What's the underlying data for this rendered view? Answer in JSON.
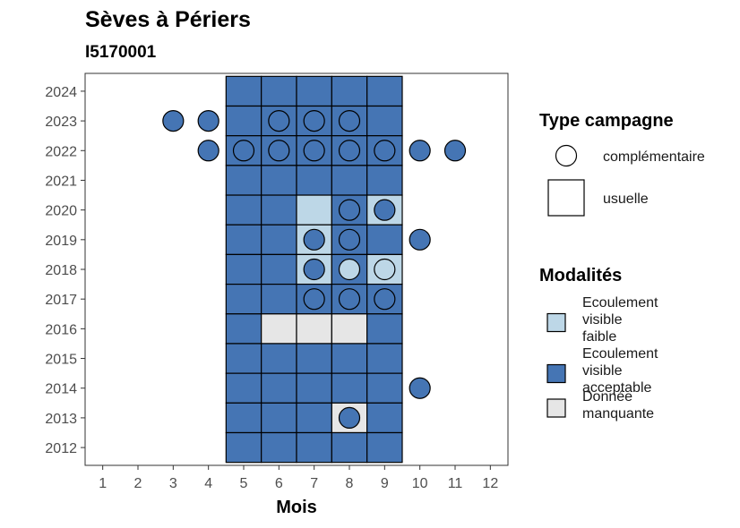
{
  "chart_data": {
    "type": "heatmap",
    "title": "Sèves à Périers",
    "subtitle": "I5170001",
    "xlabel": "Mois",
    "ylabel": "",
    "x_ticks": [
      1,
      2,
      3,
      4,
      5,
      6,
      7,
      8,
      9,
      10,
      11,
      12
    ],
    "y_ticks": [
      2012,
      2013,
      2014,
      2015,
      2016,
      2017,
      2018,
      2019,
      2020,
      2021,
      2022,
      2023,
      2024
    ],
    "xlim": [
      0.5,
      12.5
    ],
    "ylim": [
      2011.4,
      2024.6
    ],
    "colors": {
      "faible": "#bdd7e7",
      "acceptable": "#4575b4",
      "manquante": "#e6e6e6"
    },
    "legend_campaign": {
      "title": "Type campagne",
      "entries": [
        {
          "label": "complémentaire",
          "shape": "circle"
        },
        {
          "label": "usuelle",
          "shape": "square"
        }
      ]
    },
    "legend_modality": {
      "title": "Modalités",
      "entries": [
        {
          "key": "faible",
          "lines": [
            "Ecoulement",
            "visible",
            "faible"
          ]
        },
        {
          "key": "acceptable",
          "lines": [
            "Ecoulement",
            "visible",
            "acceptable"
          ]
        },
        {
          "key": "manquante",
          "lines": [
            "Donnée",
            "manquante"
          ]
        }
      ]
    },
    "tiles": [
      {
        "year": 2024,
        "month": 5,
        "m": "acceptable"
      },
      {
        "year": 2024,
        "month": 6,
        "m": "acceptable"
      },
      {
        "year": 2024,
        "month": 7,
        "m": "acceptable"
      },
      {
        "year": 2024,
        "month": 8,
        "m": "acceptable"
      },
      {
        "year": 2024,
        "month": 9,
        "m": "acceptable"
      },
      {
        "year": 2023,
        "month": 5,
        "m": "acceptable"
      },
      {
        "year": 2023,
        "month": 6,
        "m": "acceptable"
      },
      {
        "year": 2023,
        "month": 7,
        "m": "acceptable"
      },
      {
        "year": 2023,
        "month": 8,
        "m": "acceptable"
      },
      {
        "year": 2023,
        "month": 9,
        "m": "acceptable"
      },
      {
        "year": 2022,
        "month": 5,
        "m": "acceptable"
      },
      {
        "year": 2022,
        "month": 6,
        "m": "acceptable"
      },
      {
        "year": 2022,
        "month": 7,
        "m": "acceptable"
      },
      {
        "year": 2022,
        "month": 8,
        "m": "acceptable"
      },
      {
        "year": 2022,
        "month": 9,
        "m": "acceptable"
      },
      {
        "year": 2021,
        "month": 5,
        "m": "acceptable"
      },
      {
        "year": 2021,
        "month": 6,
        "m": "acceptable"
      },
      {
        "year": 2021,
        "month": 7,
        "m": "acceptable"
      },
      {
        "year": 2021,
        "month": 8,
        "m": "acceptable"
      },
      {
        "year": 2021,
        "month": 9,
        "m": "acceptable"
      },
      {
        "year": 2020,
        "month": 5,
        "m": "acceptable"
      },
      {
        "year": 2020,
        "month": 6,
        "m": "acceptable"
      },
      {
        "year": 2020,
        "month": 7,
        "m": "faible"
      },
      {
        "year": 2020,
        "month": 8,
        "m": "acceptable"
      },
      {
        "year": 2020,
        "month": 9,
        "m": "faible"
      },
      {
        "year": 2019,
        "month": 5,
        "m": "acceptable"
      },
      {
        "year": 2019,
        "month": 6,
        "m": "acceptable"
      },
      {
        "year": 2019,
        "month": 7,
        "m": "faible"
      },
      {
        "year": 2019,
        "month": 8,
        "m": "acceptable"
      },
      {
        "year": 2019,
        "month": 9,
        "m": "acceptable"
      },
      {
        "year": 2018,
        "month": 5,
        "m": "acceptable"
      },
      {
        "year": 2018,
        "month": 6,
        "m": "acceptable"
      },
      {
        "year": 2018,
        "month": 7,
        "m": "faible"
      },
      {
        "year": 2018,
        "month": 8,
        "m": "acceptable"
      },
      {
        "year": 2018,
        "month": 9,
        "m": "faible"
      },
      {
        "year": 2017,
        "month": 5,
        "m": "acceptable"
      },
      {
        "year": 2017,
        "month": 6,
        "m": "acceptable"
      },
      {
        "year": 2017,
        "month": 7,
        "m": "acceptable"
      },
      {
        "year": 2017,
        "month": 8,
        "m": "acceptable"
      },
      {
        "year": 2017,
        "month": 9,
        "m": "acceptable"
      },
      {
        "year": 2016,
        "month": 5,
        "m": "acceptable"
      },
      {
        "year": 2016,
        "month": 6,
        "m": "manquante"
      },
      {
        "year": 2016,
        "month": 7,
        "m": "manquante"
      },
      {
        "year": 2016,
        "month": 8,
        "m": "manquante"
      },
      {
        "year": 2016,
        "month": 9,
        "m": "acceptable"
      },
      {
        "year": 2015,
        "month": 5,
        "m": "acceptable"
      },
      {
        "year": 2015,
        "month": 6,
        "m": "acceptable"
      },
      {
        "year": 2015,
        "month": 7,
        "m": "acceptable"
      },
      {
        "year": 2015,
        "month": 8,
        "m": "acceptable"
      },
      {
        "year": 2015,
        "month": 9,
        "m": "acceptable"
      },
      {
        "year": 2014,
        "month": 5,
        "m": "acceptable"
      },
      {
        "year": 2014,
        "month": 6,
        "m": "acceptable"
      },
      {
        "year": 2014,
        "month": 7,
        "m": "acceptable"
      },
      {
        "year": 2014,
        "month": 8,
        "m": "acceptable"
      },
      {
        "year": 2014,
        "month": 9,
        "m": "acceptable"
      },
      {
        "year": 2013,
        "month": 5,
        "m": "acceptable"
      },
      {
        "year": 2013,
        "month": 6,
        "m": "acceptable"
      },
      {
        "year": 2013,
        "month": 7,
        "m": "acceptable"
      },
      {
        "year": 2013,
        "month": 8,
        "m": "manquante"
      },
      {
        "year": 2013,
        "month": 9,
        "m": "acceptable"
      },
      {
        "year": 2012,
        "month": 5,
        "m": "acceptable"
      },
      {
        "year": 2012,
        "month": 6,
        "m": "acceptable"
      },
      {
        "year": 2012,
        "month": 7,
        "m": "acceptable"
      },
      {
        "year": 2012,
        "month": 8,
        "m": "acceptable"
      },
      {
        "year": 2012,
        "month": 9,
        "m": "acceptable"
      }
    ],
    "points": [
      {
        "year": 2023,
        "month": 3,
        "m": "acceptable"
      },
      {
        "year": 2023,
        "month": 4,
        "m": "acceptable"
      },
      {
        "year": 2023,
        "month": 6,
        "m": "acceptable"
      },
      {
        "year": 2023,
        "month": 7,
        "m": "acceptable"
      },
      {
        "year": 2023,
        "month": 8,
        "m": "acceptable"
      },
      {
        "year": 2022,
        "month": 4,
        "m": "acceptable"
      },
      {
        "year": 2022,
        "month": 5,
        "m": "acceptable"
      },
      {
        "year": 2022,
        "month": 6,
        "m": "acceptable"
      },
      {
        "year": 2022,
        "month": 7,
        "m": "acceptable"
      },
      {
        "year": 2022,
        "month": 8,
        "m": "acceptable"
      },
      {
        "year": 2022,
        "month": 9,
        "m": "acceptable"
      },
      {
        "year": 2022,
        "month": 10,
        "m": "acceptable"
      },
      {
        "year": 2022,
        "month": 11,
        "m": "acceptable"
      },
      {
        "year": 2020,
        "month": 8,
        "m": "acceptable"
      },
      {
        "year": 2020,
        "month": 9,
        "m": "acceptable"
      },
      {
        "year": 2019,
        "month": 7,
        "m": "acceptable"
      },
      {
        "year": 2019,
        "month": 8,
        "m": "acceptable"
      },
      {
        "year": 2019,
        "month": 10,
        "m": "acceptable"
      },
      {
        "year": 2018,
        "month": 7,
        "m": "acceptable"
      },
      {
        "year": 2018,
        "month": 8,
        "m": "faible"
      },
      {
        "year": 2018,
        "month": 9,
        "m": "faible"
      },
      {
        "year": 2017,
        "month": 7,
        "m": "acceptable"
      },
      {
        "year": 2017,
        "month": 8,
        "m": "acceptable"
      },
      {
        "year": 2017,
        "month": 9,
        "m": "acceptable"
      },
      {
        "year": 2014,
        "month": 10,
        "m": "acceptable"
      },
      {
        "year": 2013,
        "month": 8,
        "m": "acceptable"
      }
    ]
  }
}
